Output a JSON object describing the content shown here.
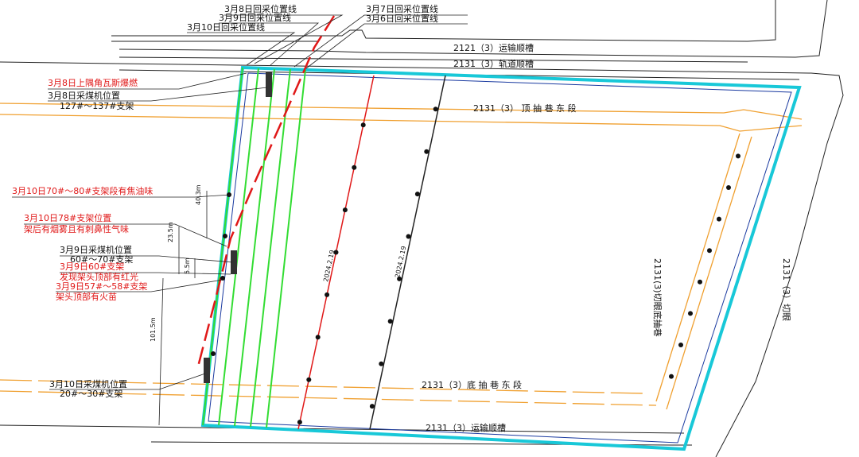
{
  "retreat_lines": [
    "3月8日回采位置线",
    "3月9日回采位置线",
    "3月10日回采位置线",
    "3月7日回采位置线",
    "3月6日回采位置线"
  ],
  "roads": {
    "top_haulage": "2121（3）运输顺槽",
    "track": "2131（3）轨道顺槽",
    "top_drainage": "2131（3） 顶 抽 巷 东 段",
    "bottom_drainage": "2131（3）底 抽 巷 东 段",
    "haulage": "2131（3）运输顺槽",
    "cut_drainage": "2131(3)切眼底抽巷",
    "cut": "2131（3）切眼"
  },
  "annotations": {
    "gas_explosion": "3月8日上隅角瓦斯爆燃",
    "shearer_0308": [
      "3月8日采煤机位置",
      "127#～137#支架"
    ],
    "tar_smell": "3月10日70#～80#支架段有焦油味",
    "support_78": [
      "3月10日78#支架位置",
      "架后有烟雾且有刺鼻性气味"
    ],
    "shearer_0309": [
      "3月9日采煤机位置",
      "60#～70#支架"
    ],
    "red_light": [
      "3月9日60#支架",
      "发现架头顶部有红光"
    ],
    "flame": [
      "3月9日57#～58#支架",
      "架头顶部有火苗"
    ],
    "shearer_0310": [
      "3月10日采煤机位置",
      "20#～30#支架"
    ]
  },
  "dimensions": [
    "40.3m",
    "23.5m",
    "5.5m",
    "101.5m"
  ],
  "line_dates": [
    "2024.2.19",
    "2024.2.19"
  ]
}
